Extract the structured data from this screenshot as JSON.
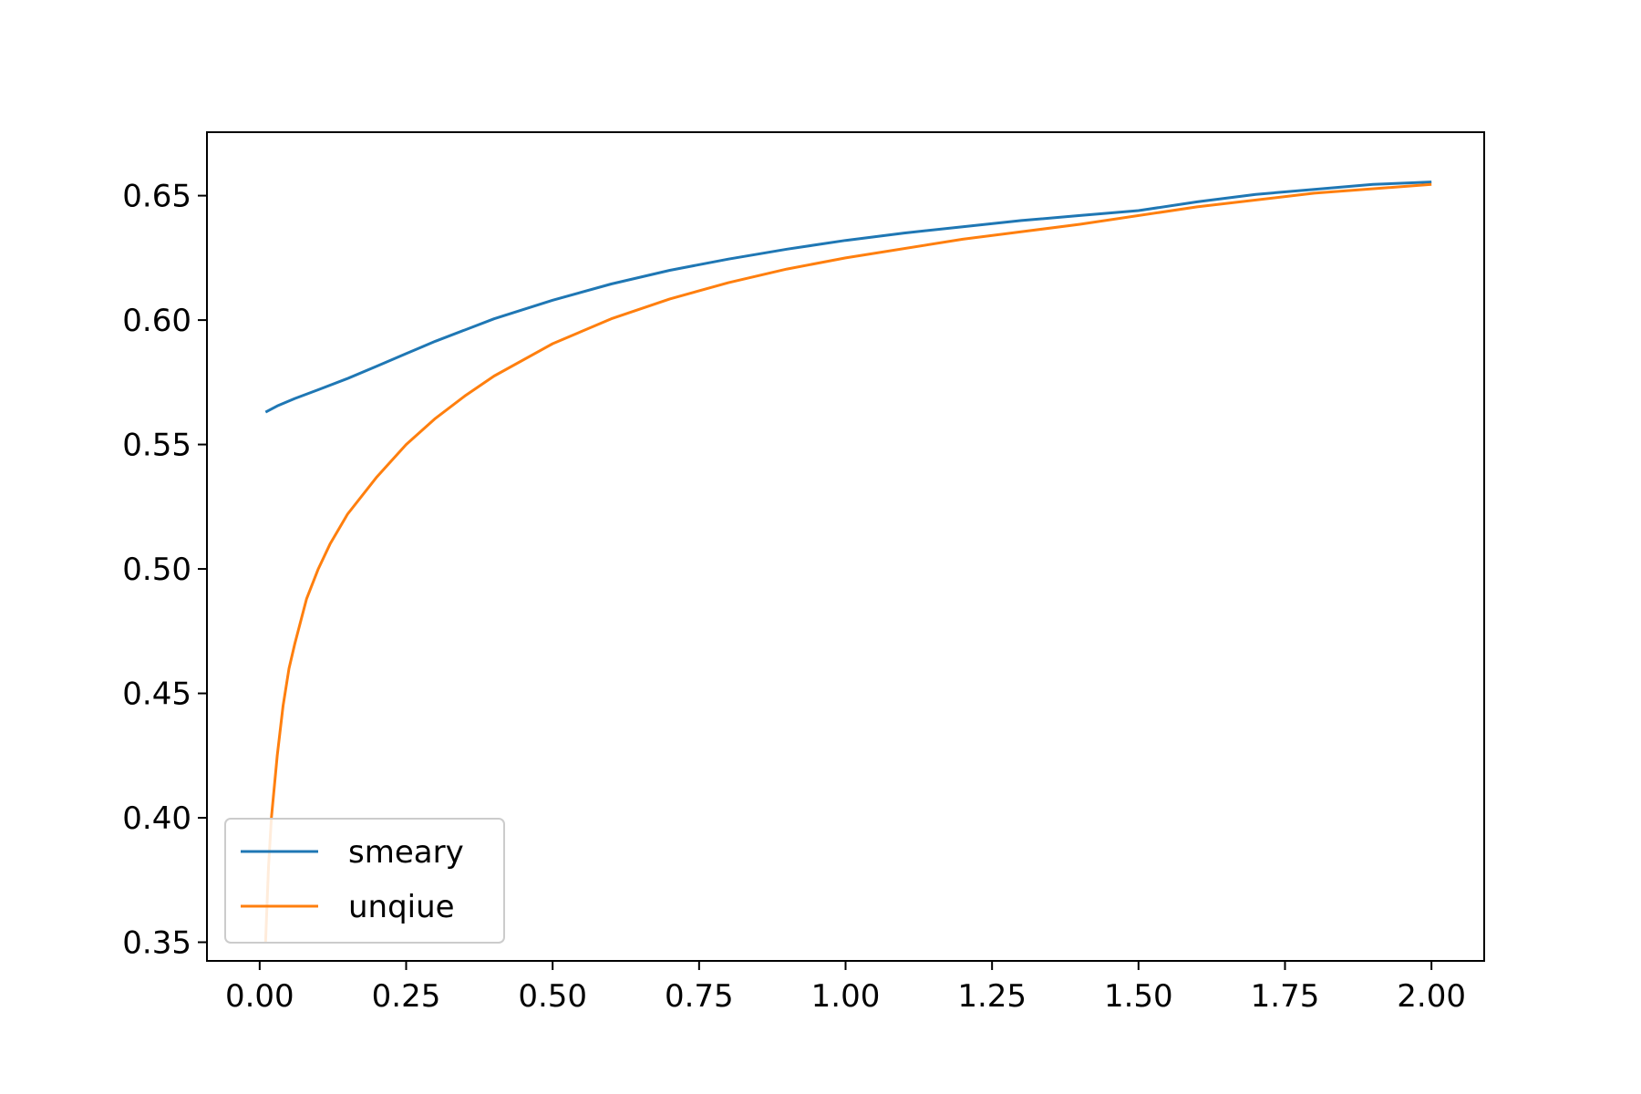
{
  "chart_data": {
    "type": "line",
    "title": "",
    "xlabel": "",
    "ylabel": "",
    "xlim": [
      -0.09,
      2.09
    ],
    "ylim": [
      0.3425,
      0.6755
    ],
    "xticks": [
      0.0,
      0.25,
      0.5,
      0.75,
      1.0,
      1.25,
      1.5,
      1.75,
      2.0
    ],
    "xtick_labels": [
      "0.00",
      "0.25",
      "0.50",
      "0.75",
      "1.00",
      "1.25",
      "1.50",
      "1.75",
      "2.00"
    ],
    "yticks": [
      0.35,
      0.4,
      0.45,
      0.5,
      0.55,
      0.6,
      0.65
    ],
    "ytick_labels": [
      "0.35",
      "0.40",
      "0.45",
      "0.50",
      "0.55",
      "0.60",
      "0.65"
    ],
    "grid": false,
    "legend_position": "lower-left",
    "series": [
      {
        "name": "smeary",
        "color": "#1f77b4",
        "x": [
          0.01,
          0.03,
          0.06,
          0.1,
          0.15,
          0.2,
          0.25,
          0.3,
          0.4,
          0.5,
          0.6,
          0.7,
          0.8,
          0.9,
          1.0,
          1.1,
          1.2,
          1.3,
          1.4,
          1.5,
          1.6,
          1.7,
          1.8,
          1.9,
          2.0
        ],
        "y": [
          0.563,
          0.5655,
          0.5685,
          0.572,
          0.5765,
          0.5815,
          0.5865,
          0.5915,
          0.6005,
          0.608,
          0.6145,
          0.62,
          0.6245,
          0.6285,
          0.632,
          0.635,
          0.6375,
          0.64,
          0.642,
          0.644,
          0.6475,
          0.6505,
          0.6525,
          0.6545,
          0.6555
        ]
      },
      {
        "name": "unqiue",
        "color": "#ff7f0e",
        "x": [
          0.01,
          0.015,
          0.02,
          0.03,
          0.04,
          0.05,
          0.06,
          0.08,
          0.1,
          0.12,
          0.15,
          0.2,
          0.25,
          0.3,
          0.35,
          0.4,
          0.5,
          0.6,
          0.7,
          0.8,
          0.9,
          1.0,
          1.2,
          1.4,
          1.6,
          1.8,
          2.0
        ],
        "y": [
          0.35,
          0.38,
          0.4,
          0.425,
          0.445,
          0.46,
          0.47,
          0.488,
          0.5,
          0.51,
          0.522,
          0.537,
          0.55,
          0.5605,
          0.5695,
          0.5775,
          0.5905,
          0.6005,
          0.6085,
          0.615,
          0.6205,
          0.625,
          0.6325,
          0.6385,
          0.6455,
          0.651,
          0.6545
        ]
      }
    ]
  }
}
